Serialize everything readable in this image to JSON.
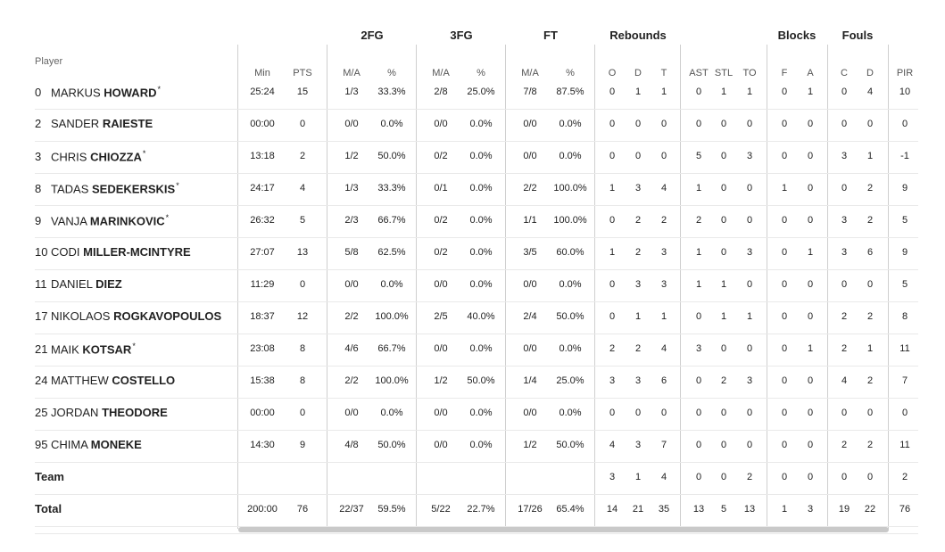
{
  "header": {
    "player_label": "Player",
    "groups": [
      "2FG",
      "3FG",
      "FT",
      "Rebounds",
      "Blocks",
      "Fouls"
    ],
    "columns": [
      "Min",
      "PTS",
      "M/A",
      "%",
      "M/A",
      "%",
      "M/A",
      "%",
      "O",
      "D",
      "T",
      "AST",
      "STL",
      "TO",
      "F",
      "A",
      "C",
      "D",
      "PIR"
    ]
  },
  "players": [
    {
      "number": "0",
      "first": "MARKUS",
      "last": "HOWARD",
      "starter": true,
      "stats": [
        "25:24",
        "15",
        "1/3",
        "33.3%",
        "2/8",
        "25.0%",
        "7/8",
        "87.5%",
        "0",
        "1",
        "1",
        "0",
        "1",
        "1",
        "0",
        "1",
        "0",
        "4",
        "10"
      ]
    },
    {
      "number": "2",
      "first": "SANDER",
      "last": "RAIESTE",
      "starter": false,
      "stats": [
        "00:00",
        "0",
        "0/0",
        "0.0%",
        "0/0",
        "0.0%",
        "0/0",
        "0.0%",
        "0",
        "0",
        "0",
        "0",
        "0",
        "0",
        "0",
        "0",
        "0",
        "0",
        "0"
      ]
    },
    {
      "number": "3",
      "first": "CHRIS",
      "last": "CHIOZZA",
      "starter": true,
      "stats": [
        "13:18",
        "2",
        "1/2",
        "50.0%",
        "0/2",
        "0.0%",
        "0/0",
        "0.0%",
        "0",
        "0",
        "0",
        "5",
        "0",
        "3",
        "0",
        "0",
        "3",
        "1",
        "-1"
      ]
    },
    {
      "number": "8",
      "first": "TADAS",
      "last": "SEDEKERSKIS",
      "starter": true,
      "stats": [
        "24:17",
        "4",
        "1/3",
        "33.3%",
        "0/1",
        "0.0%",
        "2/2",
        "100.0%",
        "1",
        "3",
        "4",
        "1",
        "0",
        "0",
        "1",
        "0",
        "0",
        "2",
        "9"
      ]
    },
    {
      "number": "9",
      "first": "VANJA",
      "last": "MARINKOVIC",
      "starter": true,
      "stats": [
        "26:32",
        "5",
        "2/3",
        "66.7%",
        "0/2",
        "0.0%",
        "1/1",
        "100.0%",
        "0",
        "2",
        "2",
        "2",
        "0",
        "0",
        "0",
        "0",
        "3",
        "2",
        "5"
      ]
    },
    {
      "number": "10",
      "first": "CODI",
      "last": "MILLER-MCINTYRE",
      "starter": false,
      "stats": [
        "27:07",
        "13",
        "5/8",
        "62.5%",
        "0/2",
        "0.0%",
        "3/5",
        "60.0%",
        "1",
        "2",
        "3",
        "1",
        "0",
        "3",
        "0",
        "1",
        "3",
        "6",
        "9"
      ]
    },
    {
      "number": "11",
      "first": "DANIEL",
      "last": "DIEZ",
      "starter": false,
      "stats": [
        "11:29",
        "0",
        "0/0",
        "0.0%",
        "0/0",
        "0.0%",
        "0/0",
        "0.0%",
        "0",
        "3",
        "3",
        "1",
        "1",
        "0",
        "0",
        "0",
        "0",
        "0",
        "5"
      ]
    },
    {
      "number": "17",
      "first": "NIKOLAOS",
      "last": "ROGKAVOPOULOS",
      "starter": false,
      "stats": [
        "18:37",
        "12",
        "2/2",
        "100.0%",
        "2/5",
        "40.0%",
        "2/4",
        "50.0%",
        "0",
        "1",
        "1",
        "0",
        "1",
        "1",
        "0",
        "0",
        "2",
        "2",
        "8"
      ]
    },
    {
      "number": "21",
      "first": "MAIK",
      "last": "KOTSAR",
      "starter": true,
      "stats": [
        "23:08",
        "8",
        "4/6",
        "66.7%",
        "0/0",
        "0.0%",
        "0/0",
        "0.0%",
        "2",
        "2",
        "4",
        "3",
        "0",
        "0",
        "0",
        "1",
        "2",
        "1",
        "11"
      ]
    },
    {
      "number": "24",
      "first": "MATTHEW",
      "last": "COSTELLO",
      "starter": false,
      "stats": [
        "15:38",
        "8",
        "2/2",
        "100.0%",
        "1/2",
        "50.0%",
        "1/4",
        "25.0%",
        "3",
        "3",
        "6",
        "0",
        "2",
        "3",
        "0",
        "0",
        "4",
        "2",
        "7"
      ]
    },
    {
      "number": "25",
      "first": "JORDAN",
      "last": "THEODORE",
      "starter": false,
      "stats": [
        "00:00",
        "0",
        "0/0",
        "0.0%",
        "0/0",
        "0.0%",
        "0/0",
        "0.0%",
        "0",
        "0",
        "0",
        "0",
        "0",
        "0",
        "0",
        "0",
        "0",
        "0",
        "0"
      ]
    },
    {
      "number": "95",
      "first": "CHIMA",
      "last": "MONEKE",
      "starter": false,
      "stats": [
        "14:30",
        "9",
        "4/8",
        "50.0%",
        "0/0",
        "0.0%",
        "1/2",
        "50.0%",
        "4",
        "3",
        "7",
        "0",
        "0",
        "0",
        "0",
        "0",
        "2",
        "2",
        "11"
      ]
    }
  ],
  "team": {
    "label": "Team",
    "stats": [
      "",
      "",
      "",
      "",
      "",
      "",
      "",
      "",
      "3",
      "1",
      "4",
      "0",
      "0",
      "2",
      "0",
      "0",
      "0",
      "0",
      "2"
    ]
  },
  "total": {
    "label": "Total",
    "stats": [
      "200:00",
      "76",
      "22/37",
      "59.5%",
      "5/22",
      "22.7%",
      "17/26",
      "65.4%",
      "14",
      "21",
      "35",
      "13",
      "5",
      "13",
      "1",
      "3",
      "19",
      "22",
      "76"
    ]
  },
  "starter_mark": "*"
}
